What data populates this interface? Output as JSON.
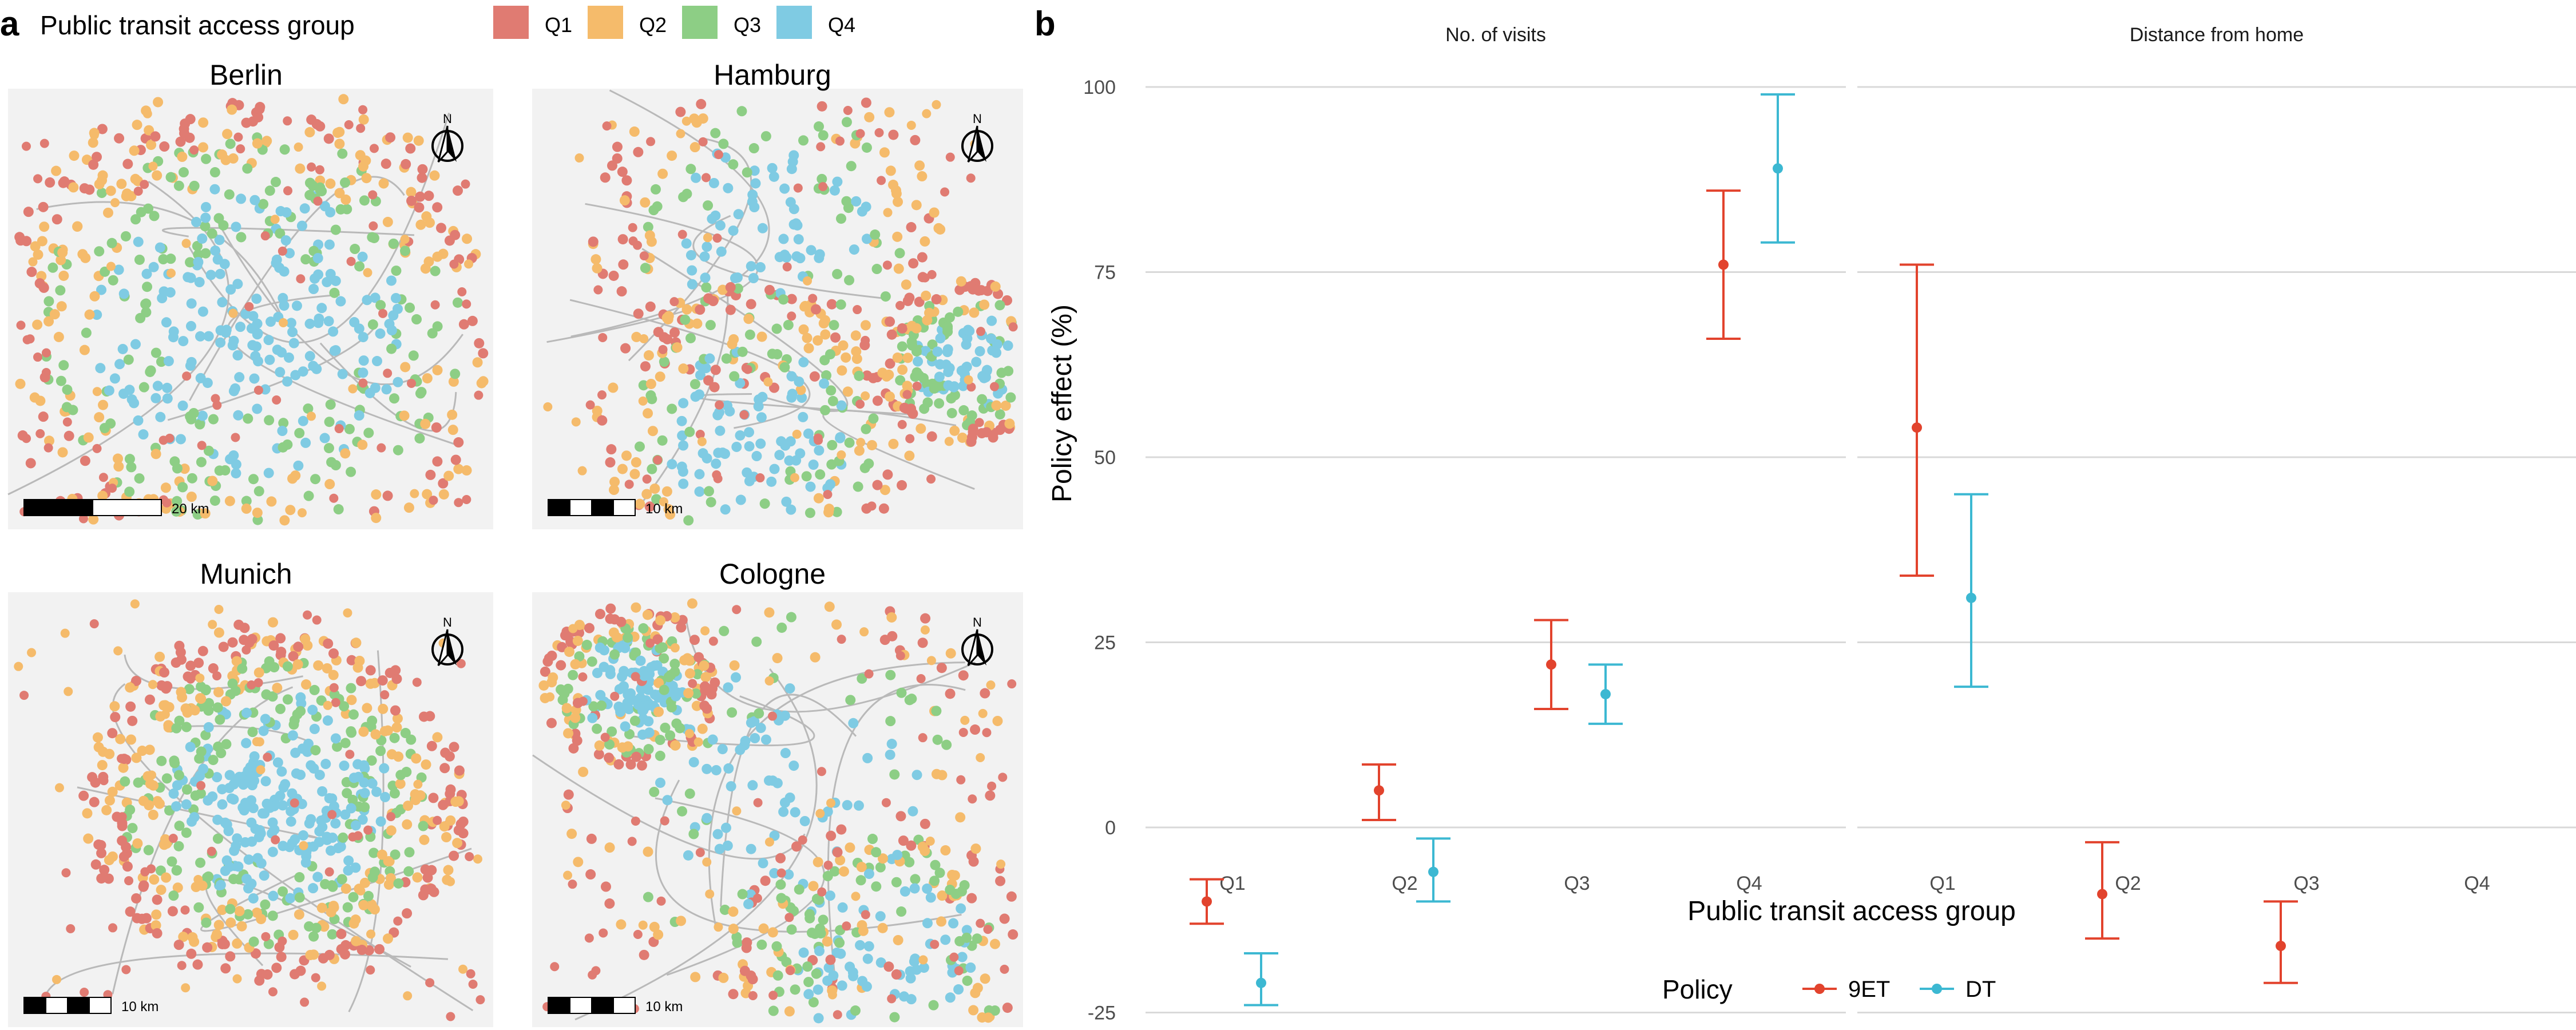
{
  "panel_a": {
    "panel_label": "a",
    "legend": {
      "title": "Public transit access group",
      "items": [
        {
          "label": "Q1",
          "color": "#e07b72"
        },
        {
          "label": "Q2",
          "color": "#f5bb6b"
        },
        {
          "label": "Q3",
          "color": "#8dce85"
        },
        {
          "label": "Q4",
          "color": "#7fcbe3"
        }
      ]
    },
    "maps": [
      {
        "city": "Berlin",
        "scale_text": "20 km",
        "north": "N"
      },
      {
        "city": "Hamburg",
        "scale_text": "10 km",
        "north": "N"
      },
      {
        "city": "Munich",
        "scale_text": "10 km",
        "north": "N"
      },
      {
        "city": "Cologne",
        "scale_text": "10 km",
        "north": "N"
      }
    ]
  },
  "panel_b": {
    "panel_label": "b"
  },
  "chart_data": {
    "type": "scatter",
    "style": "point estimates with error bars, two facets",
    "ylabel": "Policy effect (%)",
    "xlabel": "Public transit access group",
    "ylim": [
      -30,
      105
    ],
    "yticks": [
      -25,
      0,
      25,
      50,
      75,
      100
    ],
    "categories": [
      "Q1",
      "Q2",
      "Q3",
      "Q4"
    ],
    "grid": "horizontal major gridlines",
    "legend": {
      "title": "Policy",
      "placement": "bottom",
      "entries": [
        {
          "label": "9ET",
          "color": "#e2432d"
        },
        {
          "label": "DT",
          "color": "#3cb8d2"
        }
      ]
    },
    "facets": [
      {
        "title": "No. of visits",
        "series": [
          {
            "name": "9ET",
            "points": [
              {
                "x": "Q1",
                "y": -10,
                "lo": -13,
                "hi": -7
              },
              {
                "x": "Q2",
                "y": 5,
                "lo": 1,
                "hi": 8.5
              },
              {
                "x": "Q3",
                "y": 22,
                "lo": 16,
                "hi": 28
              },
              {
                "x": "Q4",
                "y": 76,
                "lo": 66,
                "hi": 86
              }
            ]
          },
          {
            "name": "DT",
            "points": [
              {
                "x": "Q1",
                "y": -21,
                "lo": -24,
                "hi": -17
              },
              {
                "x": "Q2",
                "y": -6,
                "lo": -10,
                "hi": -1.5
              },
              {
                "x": "Q3",
                "y": 18,
                "lo": 14,
                "hi": 22
              },
              {
                "x": "Q4",
                "y": 89,
                "lo": 79,
                "hi": 99
              }
            ]
          }
        ]
      },
      {
        "title": "Distance from home",
        "series": [
          {
            "name": "9ET",
            "points": [
              {
                "x": "Q1",
                "y": 54,
                "lo": 34,
                "hi": 76
              },
              {
                "x": "Q2",
                "y": -9,
                "lo": -15,
                "hi": -2
              },
              {
                "x": "Q3",
                "y": -16,
                "lo": -21,
                "hi": -10
              }
            ]
          },
          {
            "name": "DT",
            "points": [
              {
                "x": "Q1",
                "y": 31,
                "lo": 19,
                "hi": 45
              }
            ]
          }
        ]
      }
    ]
  }
}
